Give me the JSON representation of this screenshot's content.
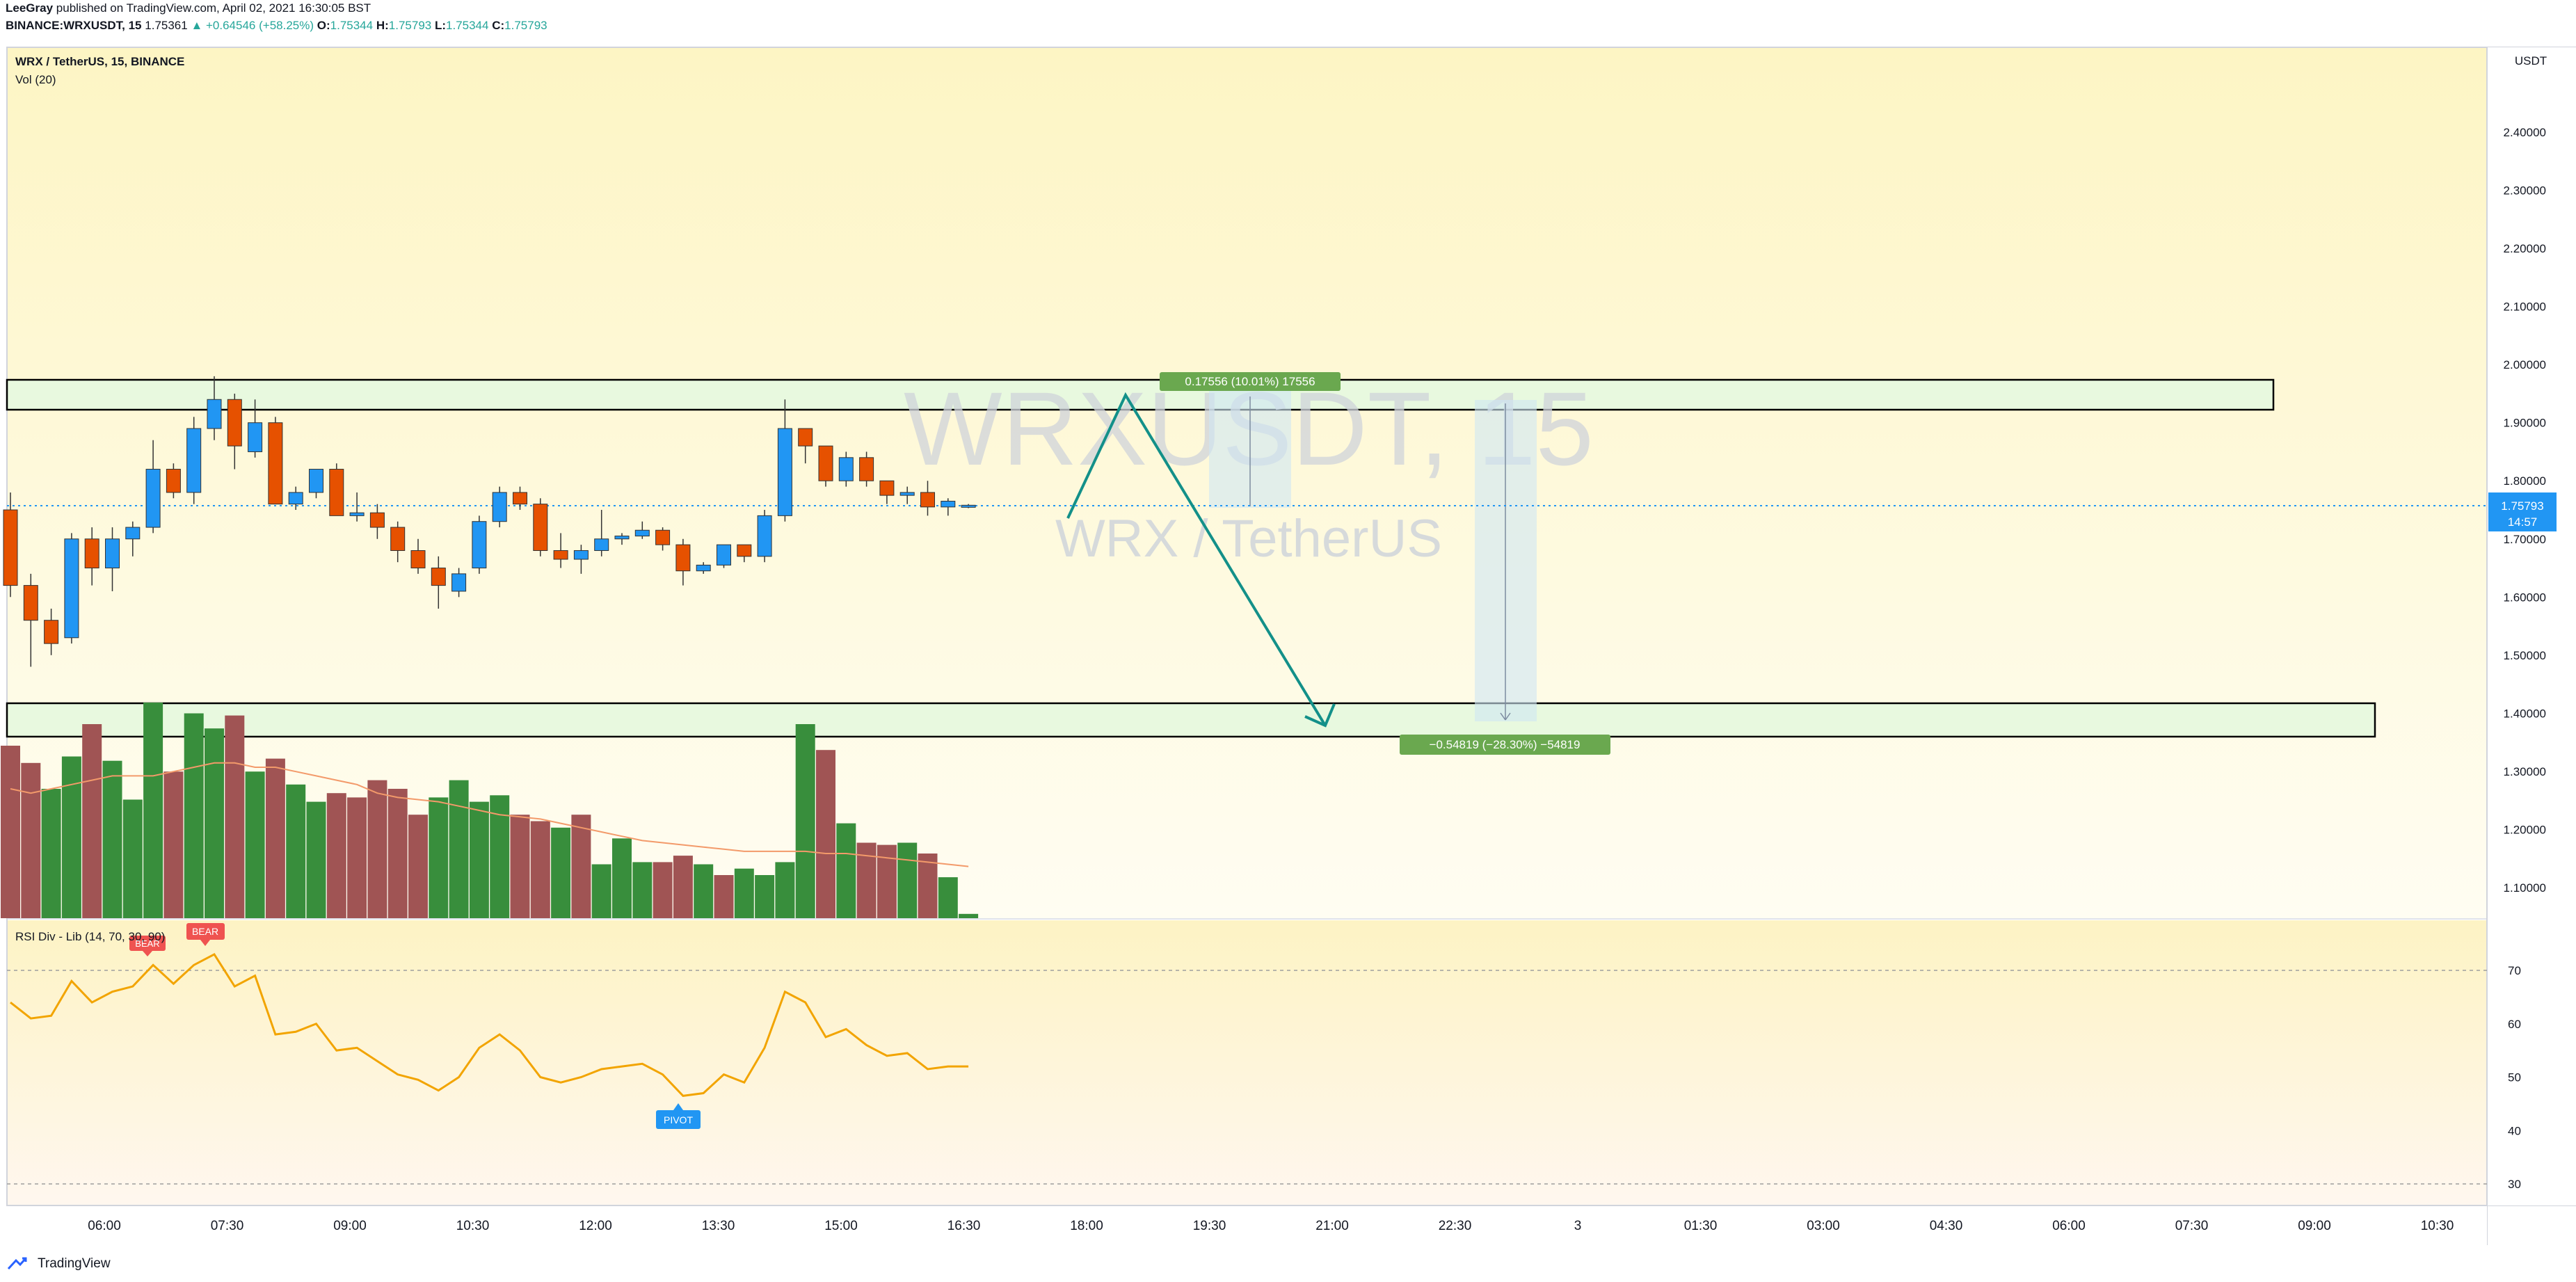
{
  "header": {
    "author": "LeeGray",
    "published": "published on TradingView.com, April 02, 2021 16:30:05 BST",
    "symbol_line": "BINANCE:WRXUSDT, 15",
    "last": "1.75361",
    "change": "▲ +0.64546 (+58.25%)",
    "o_label": "O:",
    "o": "1.75344",
    "h_label": "H:",
    "h": "1.75793",
    "l_label": "L:",
    "l": "1.75344",
    "c_label": "C:",
    "c": "1.75793"
  },
  "legend": {
    "title": "WRX / TetherUS, 15, BINANCE",
    "vol": "Vol (20)",
    "rsi": "RSI Div - Lib (14, 70, 30, 90)"
  },
  "watermark": {
    "symbol": "WRXUSDT, 15",
    "name": "WRX / TetherUS"
  },
  "price_axis": {
    "currency": "USDT",
    "labels": [
      "2.40000",
      "2.30000",
      "2.20000",
      "2.10000",
      "2.00000",
      "1.90000",
      "1.80000",
      "1.70000",
      "1.60000",
      "1.50000",
      "1.40000",
      "1.30000",
      "1.20000",
      "1.10000"
    ],
    "current_price": "1.75793",
    "countdown": "14:57"
  },
  "rsi_axis": {
    "labels": [
      "70",
      "60",
      "50",
      "40",
      "30"
    ]
  },
  "time_axis": {
    "labels": [
      "06:00",
      "07:30",
      "09:00",
      "10:30",
      "12:00",
      "13:30",
      "15:00",
      "16:30",
      "18:00",
      "19:30",
      "21:00",
      "22:30",
      "3",
      "01:30",
      "03:00",
      "04:30",
      "06:00",
      "07:30",
      "09:00",
      "10:30"
    ]
  },
  "annotations": {
    "upper_measure": "0.17556 (10.01%) 17556",
    "lower_measure": "−0.54819 (−28.30%) −54819",
    "bear1": "BEAR",
    "bear2": "BEAR",
    "pivot": "PIVOT"
  },
  "footer": {
    "brand": "TradingView"
  },
  "colors": {
    "up": "#2196f3",
    "down": "#e65100",
    "vol_up": "#388e3c",
    "vol_down": "#a05454",
    "rsi": "#ff9800",
    "accent": "#26a69a",
    "zone": "#e8f9df"
  },
  "chart_data": [
    {
      "type": "candlestick",
      "title": "WRX / TetherUS, 15, BINANCE",
      "ylim": [
        1.05,
        2.52
      ],
      "candles": [
        {
          "o": 1.75,
          "h": 1.78,
          "l": 1.6,
          "c": 1.62
        },
        {
          "o": 1.62,
          "h": 1.64,
          "l": 1.48,
          "c": 1.56
        },
        {
          "o": 1.56,
          "h": 1.58,
          "l": 1.5,
          "c": 1.52
        },
        {
          "o": 1.53,
          "h": 1.71,
          "l": 1.52,
          "c": 1.7
        },
        {
          "o": 1.7,
          "h": 1.72,
          "l": 1.62,
          "c": 1.65
        },
        {
          "o": 1.65,
          "h": 1.72,
          "l": 1.61,
          "c": 1.7
        },
        {
          "o": 1.7,
          "h": 1.73,
          "l": 1.67,
          "c": 1.72
        },
        {
          "o": 1.72,
          "h": 1.87,
          "l": 1.71,
          "c": 1.82
        },
        {
          "o": 1.82,
          "h": 1.83,
          "l": 1.77,
          "c": 1.78
        },
        {
          "o": 1.78,
          "h": 1.91,
          "l": 1.76,
          "c": 1.89
        },
        {
          "o": 1.89,
          "h": 1.98,
          "l": 1.87,
          "c": 1.94
        },
        {
          "o": 1.94,
          "h": 1.95,
          "l": 1.82,
          "c": 1.86
        },
        {
          "o": 1.85,
          "h": 1.94,
          "l": 1.84,
          "c": 1.9
        },
        {
          "o": 1.9,
          "h": 1.91,
          "l": 1.76,
          "c": 1.76
        },
        {
          "o": 1.76,
          "h": 1.79,
          "l": 1.75,
          "c": 1.78
        },
        {
          "o": 1.78,
          "h": 1.82,
          "l": 1.77,
          "c": 1.82
        },
        {
          "o": 1.82,
          "h": 1.83,
          "l": 1.74,
          "c": 1.74
        },
        {
          "o": 1.74,
          "h": 1.78,
          "l": 1.73,
          "c": 1.745
        },
        {
          "o": 1.745,
          "h": 1.76,
          "l": 1.7,
          "c": 1.72
        },
        {
          "o": 1.72,
          "h": 1.73,
          "l": 1.66,
          "c": 1.68
        },
        {
          "o": 1.68,
          "h": 1.7,
          "l": 1.64,
          "c": 1.65
        },
        {
          "o": 1.65,
          "h": 1.67,
          "l": 1.58,
          "c": 1.62
        },
        {
          "o": 1.61,
          "h": 1.65,
          "l": 1.6,
          "c": 1.64
        },
        {
          "o": 1.65,
          "h": 1.74,
          "l": 1.64,
          "c": 1.73
        },
        {
          "o": 1.73,
          "h": 1.79,
          "l": 1.72,
          "c": 1.78
        },
        {
          "o": 1.78,
          "h": 1.79,
          "l": 1.75,
          "c": 1.76
        },
        {
          "o": 1.76,
          "h": 1.77,
          "l": 1.67,
          "c": 1.68
        },
        {
          "o": 1.68,
          "h": 1.71,
          "l": 1.65,
          "c": 1.665
        },
        {
          "o": 1.665,
          "h": 1.69,
          "l": 1.64,
          "c": 1.68
        },
        {
          "o": 1.68,
          "h": 1.75,
          "l": 1.67,
          "c": 1.7
        },
        {
          "o": 1.7,
          "h": 1.71,
          "l": 1.69,
          "c": 1.705
        },
        {
          "o": 1.705,
          "h": 1.73,
          "l": 1.7,
          "c": 1.715
        },
        {
          "o": 1.715,
          "h": 1.72,
          "l": 1.68,
          "c": 1.69
        },
        {
          "o": 1.69,
          "h": 1.7,
          "l": 1.62,
          "c": 1.645
        },
        {
          "o": 1.645,
          "h": 1.66,
          "l": 1.64,
          "c": 1.655
        },
        {
          "o": 1.655,
          "h": 1.69,
          "l": 1.65,
          "c": 1.69
        },
        {
          "o": 1.69,
          "h": 1.69,
          "l": 1.66,
          "c": 1.67
        },
        {
          "o": 1.67,
          "h": 1.75,
          "l": 1.66,
          "c": 1.74
        },
        {
          "o": 1.74,
          "h": 1.94,
          "l": 1.73,
          "c": 1.89
        },
        {
          "o": 1.89,
          "h": 1.89,
          "l": 1.83,
          "c": 1.86
        },
        {
          "o": 1.86,
          "h": 1.86,
          "l": 1.79,
          "c": 1.8
        },
        {
          "o": 1.8,
          "h": 1.85,
          "l": 1.79,
          "c": 1.84
        },
        {
          "o": 1.84,
          "h": 1.85,
          "l": 1.79,
          "c": 1.8
        },
        {
          "o": 1.8,
          "h": 1.8,
          "l": 1.76,
          "c": 1.775
        },
        {
          "o": 1.775,
          "h": 1.79,
          "l": 1.76,
          "c": 1.78
        },
        {
          "o": 1.78,
          "h": 1.8,
          "l": 1.74,
          "c": 1.755
        },
        {
          "o": 1.755,
          "h": 1.77,
          "l": 1.74,
          "c": 1.765
        },
        {
          "o": 1.757,
          "h": 1.76,
          "l": 1.753,
          "c": 1.758
        }
      ]
    },
    {
      "type": "bar",
      "title": "Vol (20)",
      "ylim": [
        0,
        100
      ],
      "values": [
        80,
        72,
        60,
        75,
        90,
        73,
        55,
        100,
        68,
        95,
        88,
        94,
        68,
        74,
        62,
        54,
        58,
        56,
        64,
        60,
        48,
        56,
        64,
        54,
        57,
        48,
        45,
        42,
        48,
        25,
        37,
        26,
        26,
        29,
        25,
        20,
        23,
        20,
        26,
        90,
        78,
        44,
        35,
        34,
        35,
        30,
        19,
        2
      ],
      "colors": [
        "down",
        "down",
        "up",
        "up",
        "down",
        "up",
        "up",
        "up",
        "down",
        "up",
        "up",
        "down",
        "up",
        "down",
        "up",
        "up",
        "down",
        "down",
        "down",
        "down",
        "down",
        "up",
        "up",
        "up",
        "up",
        "down",
        "down",
        "up",
        "down",
        "up",
        "up",
        "up",
        "down",
        "down",
        "up",
        "down",
        "up",
        "up",
        "up",
        "up",
        "down",
        "up",
        "down",
        "down",
        "up",
        "down",
        "up",
        "up"
      ],
      "ma": [
        60,
        58,
        60,
        62,
        64,
        66,
        66,
        66,
        68,
        70,
        72,
        72,
        70,
        70,
        68,
        66,
        64,
        62,
        58,
        56,
        55,
        54,
        52,
        50,
        48,
        47,
        46,
        44,
        42,
        40,
        38,
        36,
        35,
        34,
        33,
        32,
        31,
        31,
        31,
        31,
        30,
        30,
        29,
        28,
        27,
        26,
        25,
        24
      ]
    },
    {
      "type": "line",
      "title": "RSI Div - Lib (14, 70, 30, 90)",
      "ylim": [
        28,
        77
      ],
      "levels": [
        70,
        30
      ],
      "values": [
        64,
        61,
        61.5,
        68,
        64,
        66,
        67,
        71,
        67.5,
        71,
        73,
        67,
        69,
        58,
        58.5,
        60,
        55,
        55.5,
        53,
        50.5,
        49.5,
        47.5,
        50,
        55.5,
        58,
        55,
        50,
        49,
        50,
        51.5,
        52,
        52.5,
        50.5,
        46.5,
        47,
        50.5,
        49,
        55.5,
        66,
        64,
        57.5,
        59,
        56,
        54,
        54.5,
        51.5,
        52,
        52
      ]
    }
  ]
}
